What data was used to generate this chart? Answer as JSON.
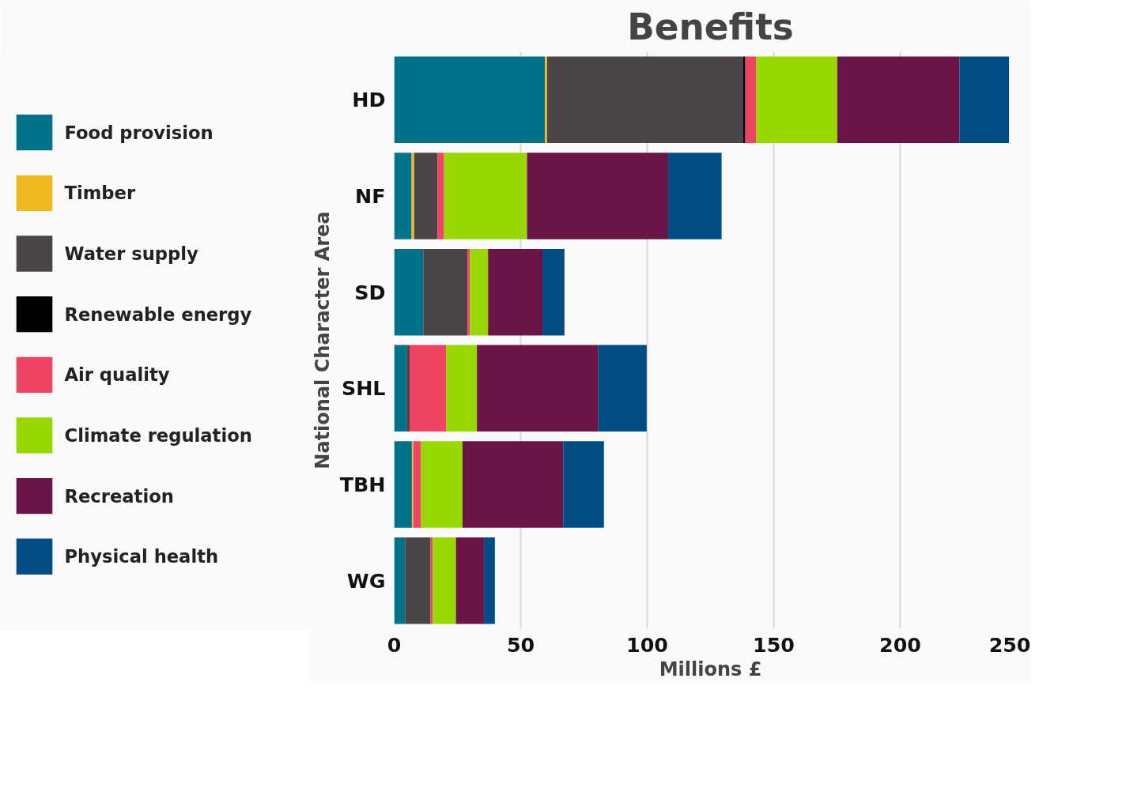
{
  "chart_data": {
    "type": "bar",
    "orientation": "horizontal",
    "stacked": true,
    "title": "Benefits",
    "xlabel": "Millions £",
    "ylabel": "National Character Area",
    "categories": [
      "HD",
      "NF",
      "SD",
      "SHL",
      "TBH",
      "WG"
    ],
    "series": [
      {
        "name": "Food provision",
        "color": "#00728a",
        "values": [
          59.6,
          6.9,
          11.5,
          4.9,
          7.0,
          4.3
        ]
      },
      {
        "name": "Timber",
        "color": "#f0b823",
        "values": [
          0.8,
          1.0,
          0,
          0,
          0.6,
          0
        ]
      },
      {
        "name": "Water supply",
        "color": "#4a4548",
        "values": [
          77.4,
          9.2,
          17.5,
          1.2,
          0,
          10.1
        ]
      },
      {
        "name": "Renewable energy",
        "color": "#000000",
        "values": [
          1.0,
          0,
          0,
          0,
          0,
          0
        ]
      },
      {
        "name": "Air quality",
        "color": "#ee4566",
        "values": [
          4.3,
          2.6,
          0.9,
          14.4,
          2.9,
          0.8
        ]
      },
      {
        "name": "Climate regulation",
        "color": "#98d800",
        "values": [
          32.0,
          32.8,
          7.2,
          12.2,
          16.5,
          9.2
        ]
      },
      {
        "name": "Recreation",
        "color": "#6b1448",
        "values": [
          48.3,
          55.8,
          21.5,
          48.0,
          39.8,
          11.1
        ]
      },
      {
        "name": "Physical health",
        "color": "#004d86",
        "values": [
          19.6,
          21.1,
          8.7,
          19.1,
          16.1,
          4.3
        ]
      }
    ],
    "xlim": [
      0,
      250
    ],
    "xticks": [
      0,
      50,
      100,
      150,
      200,
      250
    ],
    "grid": "x",
    "legend": "left"
  }
}
